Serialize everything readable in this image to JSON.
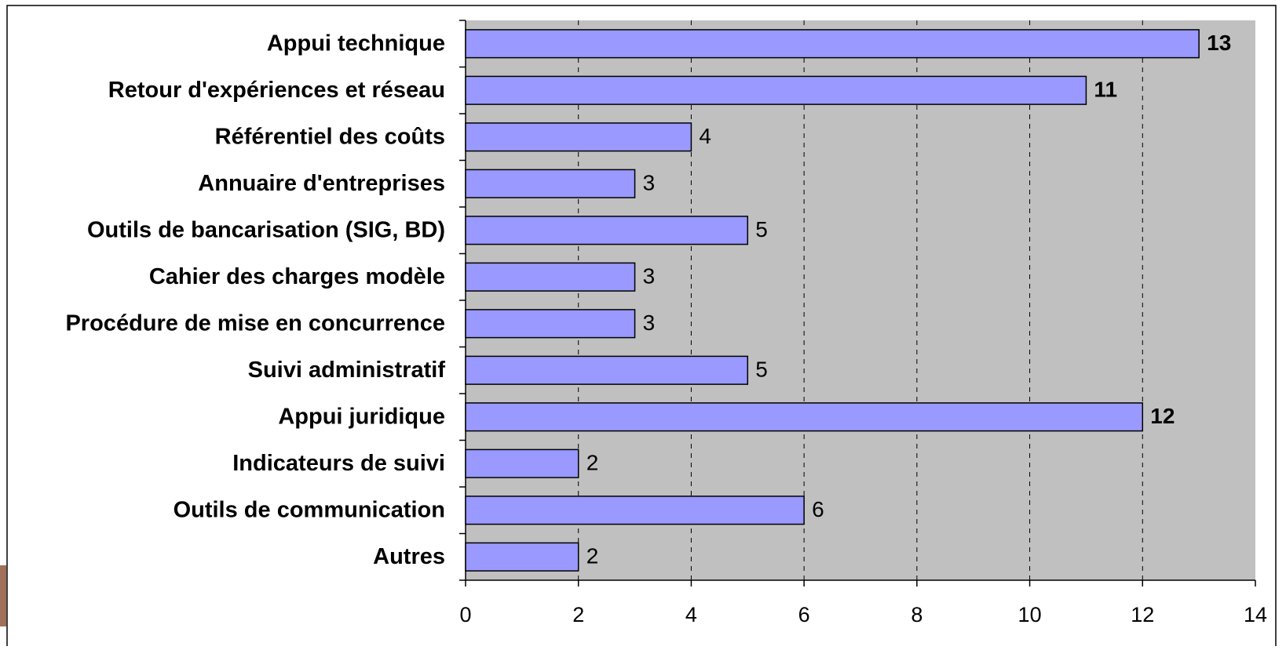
{
  "chart_data": {
    "type": "barh",
    "categories": [
      "Appui technique",
      "Retour d'expériences et réseau",
      "Référentiel des coûts",
      "Annuaire d'entreprises",
      "Outils de bancarisation (SIG, BD)",
      "Cahier des charges modèle",
      "Procédure de mise en concurrence",
      "Suivi administratif",
      "Appui juridique",
      "Indicateurs de suivi",
      "Outils de communication",
      "Autres"
    ],
    "values": [
      13,
      11,
      4,
      3,
      5,
      3,
      3,
      5,
      12,
      2,
      6,
      2
    ],
    "color": "#9999ff",
    "xlim": [
      0,
      14
    ],
    "xticks": [
      0,
      2,
      4,
      6,
      8,
      10,
      12,
      14
    ],
    "grid": true
  }
}
